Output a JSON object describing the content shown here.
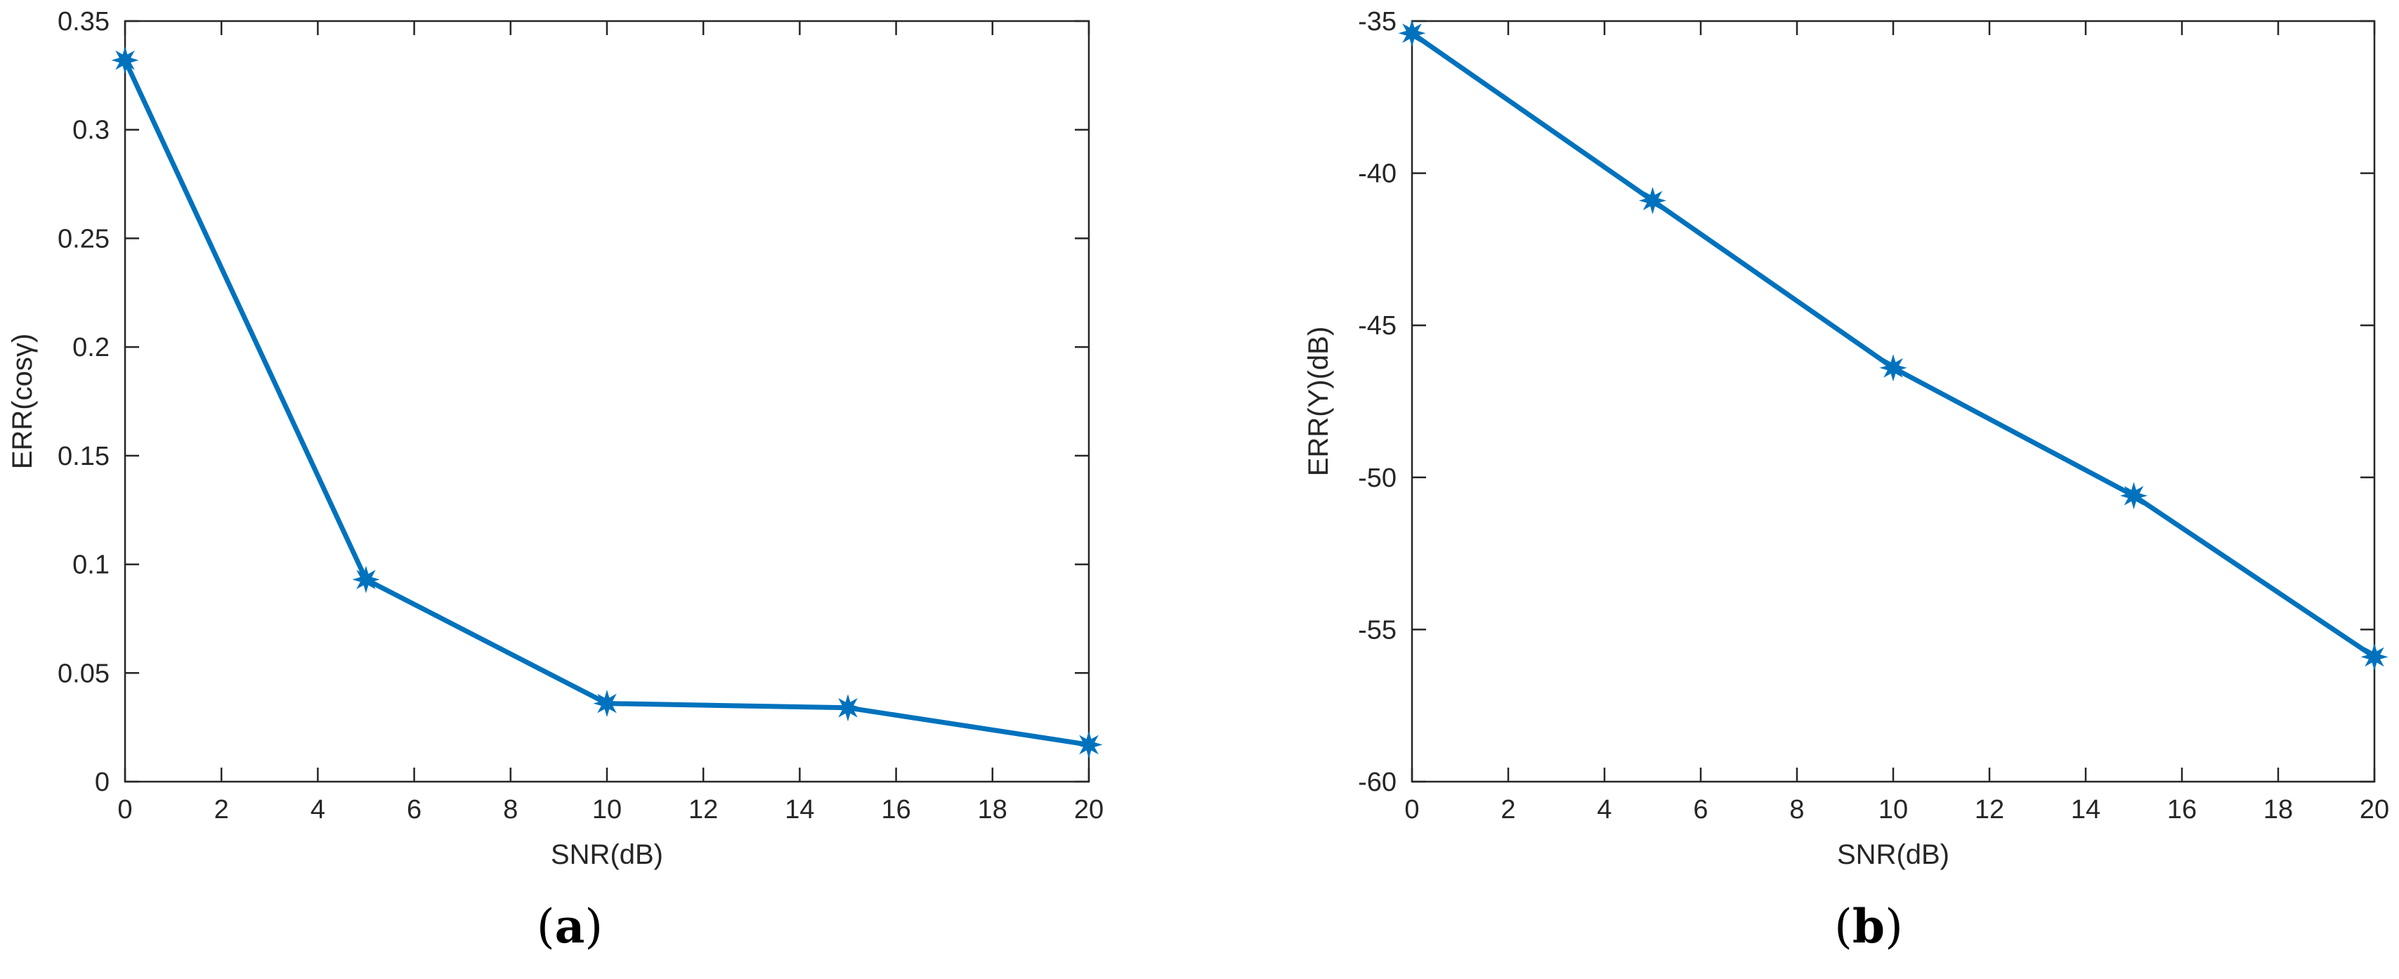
{
  "chart_data": [
    {
      "type": "line",
      "panel": "(a)",
      "xlabel": "SNR(dB)",
      "ylabel": "ERR(cosγ)",
      "x": [
        0,
        5,
        10,
        15,
        20
      ],
      "series": [
        {
          "values": [
            0.332,
            0.093,
            0.036,
            0.034,
            0.017
          ],
          "color": "#0072BD",
          "marker": "star"
        }
      ],
      "xlim": [
        0,
        20
      ],
      "ylim": [
        0,
        0.35
      ],
      "xticks": [
        0,
        2,
        4,
        6,
        8,
        10,
        12,
        14,
        16,
        18,
        20
      ],
      "xtick_labels": [
        "0",
        "2",
        "4",
        "6",
        "8",
        "10",
        "12",
        "14",
        "16",
        "18",
        "20"
      ],
      "yticks": [
        0,
        0.05,
        0.1,
        0.15,
        0.2,
        0.25,
        0.3,
        0.35
      ],
      "ytick_labels": [
        "0",
        "0.05",
        "0.1",
        "0.15",
        "0.2",
        "0.25",
        "0.3",
        "0.35"
      ],
      "grid": false
    },
    {
      "type": "line",
      "panel": "(b)",
      "xlabel": "SNR(dB)",
      "ylabel": "ERR(Y)(dB)",
      "x": [
        0,
        5,
        10,
        15,
        20
      ],
      "series": [
        {
          "values": [
            -35.4,
            -40.9,
            -46.4,
            -50.6,
            -55.9
          ],
          "color": "#0072BD",
          "marker": "star"
        }
      ],
      "xlim": [
        0,
        20
      ],
      "ylim": [
        -60,
        -35
      ],
      "xticks": [
        0,
        2,
        4,
        6,
        8,
        10,
        12,
        14,
        16,
        18,
        20
      ],
      "xtick_labels": [
        "0",
        "2",
        "4",
        "6",
        "8",
        "10",
        "12",
        "14",
        "16",
        "18",
        "20"
      ],
      "yticks": [
        -60,
        -55,
        -50,
        -45,
        -40,
        -35
      ],
      "ytick_labels": [
        "-60",
        "-55",
        "-50",
        "-45",
        "-40",
        "-35"
      ],
      "grid": false
    }
  ],
  "captions": {
    "a": "a",
    "b": "b"
  }
}
